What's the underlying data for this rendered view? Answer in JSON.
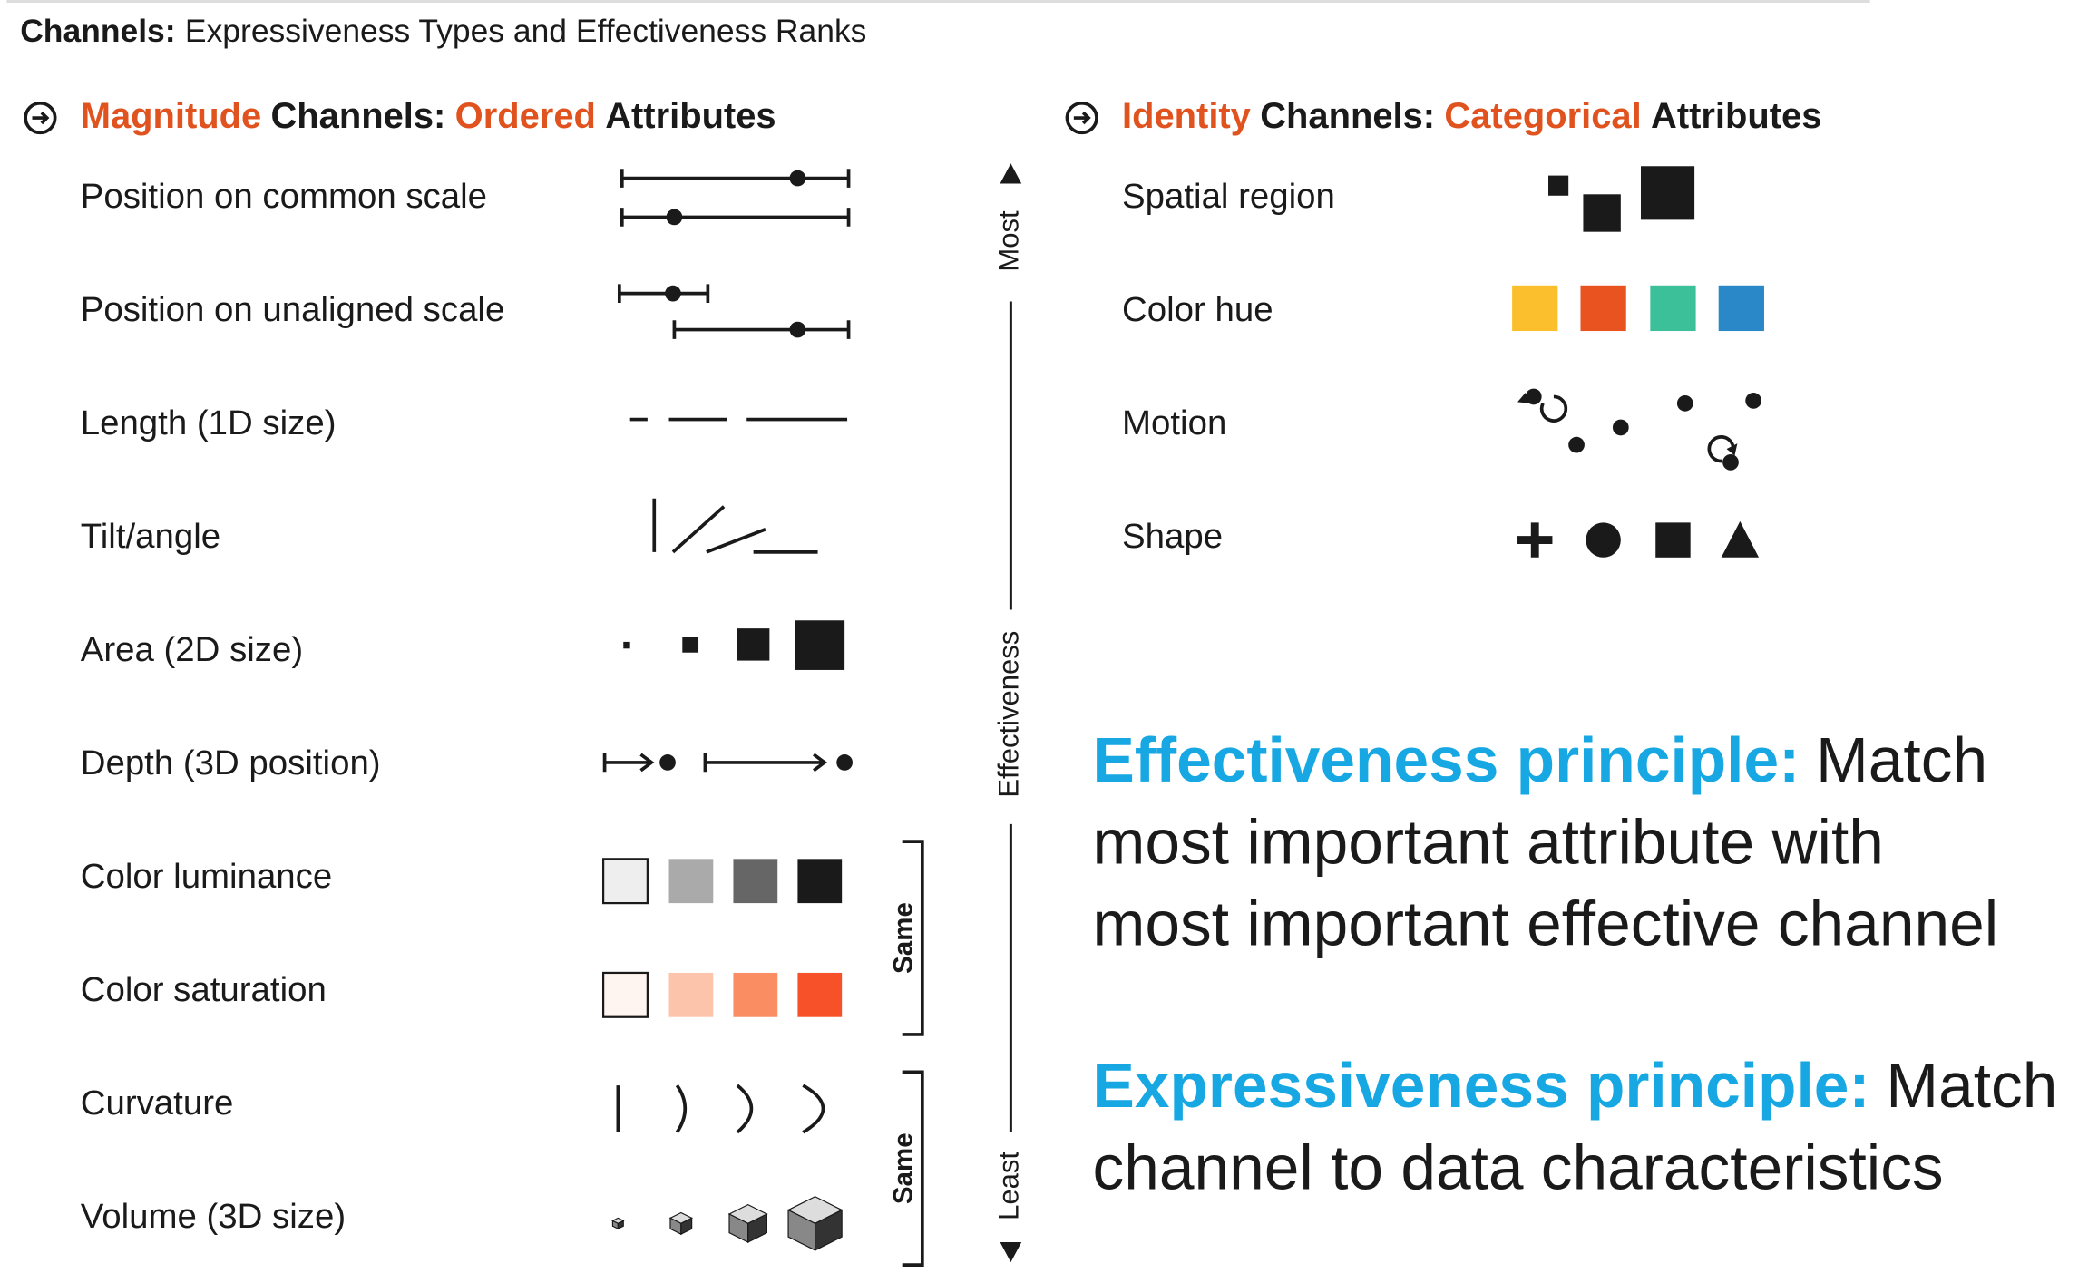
{
  "title": {
    "bold": "Channels:",
    "text": "Expressiveness Types and Effectiveness Ranks"
  },
  "magnitude": {
    "header": [
      "Magnitude",
      "Channels:",
      "Ordered",
      "Attributes"
    ],
    "channels": [
      "Position on common scale",
      "Position on unaligned scale",
      "Length (1D size)",
      "Tilt/angle",
      "Area (2D size)",
      "Depth (3D position)",
      "Color luminance",
      "Color saturation",
      "Curvature",
      "Volume (3D size)"
    ]
  },
  "identity": {
    "header": [
      "Identity",
      "Channels:",
      "Categorical",
      "Attributes"
    ],
    "channels": [
      "Spatial region",
      "Color hue",
      "Motion",
      "Shape"
    ]
  },
  "effectiveness_axis": {
    "top": "Most",
    "label": "Effectiveness",
    "bottom": "Least",
    "same": [
      "Same",
      "Same"
    ]
  },
  "principles": [
    {
      "term": "Effectiveness principle:",
      "lines": [
        "Match",
        "most important attribute with",
        "most important effective channel"
      ]
    },
    {
      "term": "Expressiveness principle:",
      "lines": [
        "Match",
        "channel to data characteristics"
      ]
    }
  ]
}
